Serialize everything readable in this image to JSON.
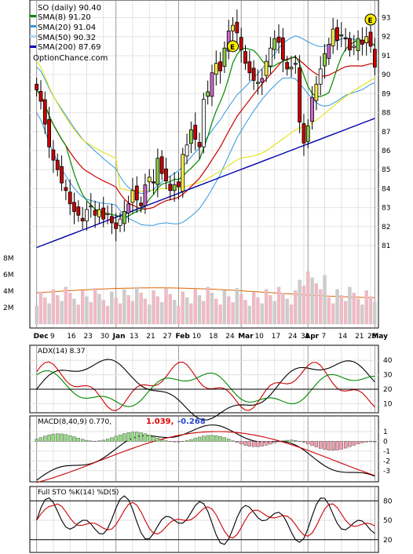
{
  "chart_data": [
    {
      "type": "candlestick",
      "title": "SO (daily) 90.40",
      "watermark": "OptionChance.com",
      "legend": [
        {
          "label": "SMA(8) 91.20",
          "color": "#008800"
        },
        {
          "label": "SMA(20) 91.04",
          "color": "#3399dd"
        },
        {
          "label": "SMA(50) 90.32",
          "color": "#dddd00"
        },
        {
          "label": "SMA(200) 87.69",
          "color": "#0000aa"
        }
      ],
      "y_ticks": [
        "93",
        "92",
        "91",
        "90",
        "89",
        "88",
        "87",
        "86",
        "85",
        "84",
        "83",
        "82",
        "81"
      ],
      "ylim": [
        80.3,
        93.6
      ],
      "volume_ticks": [
        "8M",
        "6M",
        "4M",
        "2M"
      ],
      "x_ticks": [
        {
          "label": "Dec",
          "bold": true
        },
        {
          "label": "9"
        },
        {
          "label": "16"
        },
        {
          "label": "23"
        },
        {
          "label": "30"
        },
        {
          "label": "Jan",
          "bold": true
        },
        {
          "label": "13"
        },
        {
          "label": "21"
        },
        {
          "label": "27"
        },
        {
          "label": "Feb",
          "bold": true
        },
        {
          "label": "10"
        },
        {
          "label": "18"
        },
        {
          "label": "24"
        },
        {
          "label": "Mar",
          "bold": true
        },
        {
          "label": "10"
        },
        {
          "label": "17"
        },
        {
          "label": "24"
        },
        {
          "label": "31"
        },
        {
          "label": "Apr",
          "bold": true
        },
        {
          "label": "7"
        },
        {
          "label": "14"
        },
        {
          "label": "21"
        },
        {
          "label": "28"
        },
        {
          "label": "May",
          "bold": true
        }
      ],
      "earnings_marker": "E",
      "close_approx": [
        89.2,
        88.6,
        87.4,
        86.2,
        85.5,
        85,
        84.3,
        83.9,
        83.2,
        82.8,
        82.6,
        82.3,
        82.9,
        83.1,
        82.6,
        82.9,
        82.4,
        82.7,
        82.2,
        81.9,
        82.4,
        82.8,
        83.2,
        83.9,
        83.4,
        83.1,
        84.2,
        84.6,
        84.3,
        85.6,
        84.8,
        84.4,
        83.9,
        84.2,
        84.1,
        85.8,
        86.3,
        87.1,
        86.6,
        86.2,
        88.7,
        89.1,
        90.1,
        90.6,
        90.2,
        91.4,
        92.3,
        92.6,
        92.2,
        91.3,
        90.6,
        90.1,
        89.7,
        89.6,
        89.8,
        90.7,
        91.4,
        91.9,
        91.7,
        90.8,
        90.3,
        90.4,
        90.6,
        87.5,
        86.4,
        87.3,
        88.8,
        89.5,
        90.3,
        91.1,
        91.6,
        92.4,
        91.8,
        92.1,
        91.9,
        91.3,
        91.5,
        91.9,
        91.6,
        92.0,
        91.5,
        90.4
      ],
      "indicators": [
        {
          "name": "ADX",
          "label": "ADX(14) 8.37",
          "y_ticks": [
            "40",
            "30",
            "20",
            "10"
          ]
        },
        {
          "name": "MACD",
          "label": "MACD(8,40,9) 0.770,",
          "signal": "1.039,",
          "hist": "-0.268",
          "y_ticks": [
            "1",
            "0",
            "-1",
            "-2",
            "-3"
          ]
        },
        {
          "name": "STO",
          "label": "Full STO %K(14) %D(5)",
          "y_ticks": [
            "80",
            "50",
            "20"
          ]
        }
      ]
    }
  ]
}
